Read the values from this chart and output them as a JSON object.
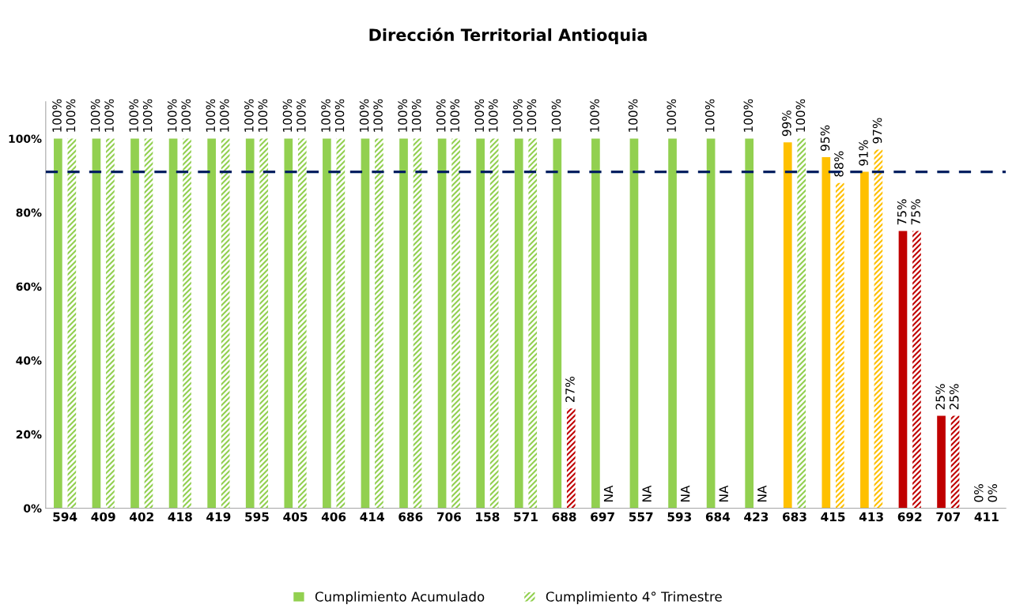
{
  "chart_data": {
    "type": "bar",
    "title": "Dirección Territorial Antioquia",
    "categories": [
      "594",
      "409",
      "402",
      "418",
      "419",
      "595",
      "405",
      "406",
      "414",
      "686",
      "706",
      "158",
      "571",
      "688",
      "697",
      "557",
      "593",
      "684",
      "423",
      "683",
      "415",
      "413",
      "692",
      "707",
      "411"
    ],
    "series": [
      {
        "name": "Cumplimiento Acumulado",
        "color": "#92d050",
        "values": [
          100,
          100,
          100,
          100,
          100,
          100,
          100,
          100,
          100,
          100,
          100,
          100,
          100,
          100,
          100,
          100,
          100,
          100,
          100,
          99,
          95,
          91,
          75,
          25,
          0
        ],
        "colors": [
          "#92d050",
          "#92d050",
          "#92d050",
          "#92d050",
          "#92d050",
          "#92d050",
          "#92d050",
          "#92d050",
          "#92d050",
          "#92d050",
          "#92d050",
          "#92d050",
          "#92d050",
          "#92d050",
          "#92d050",
          "#92d050",
          "#92d050",
          "#92d050",
          "#92d050",
          "#ffc000",
          "#ffc000",
          "#ffc000",
          "#c00000",
          "#c00000",
          "#c00000"
        ],
        "value_labels": [
          "100%",
          "100%",
          "100%",
          "100%",
          "100%",
          "100%",
          "100%",
          "100%",
          "100%",
          "100%",
          "100%",
          "100%",
          "100%",
          "100%",
          "100%",
          "100%",
          "100%",
          "100%",
          "100%",
          "99%",
          "95%",
          "91%",
          "75%",
          "25%",
          "0%"
        ]
      },
      {
        "name": "Cumplimiento 4° Trimestre",
        "color": "#92d050",
        "values": [
          100,
          100,
          100,
          100,
          100,
          100,
          100,
          100,
          100,
          100,
          100,
          100,
          100,
          27,
          null,
          null,
          null,
          null,
          null,
          100,
          88,
          97,
          75,
          25,
          0
        ],
        "colors": [
          "#92d050",
          "#92d050",
          "#92d050",
          "#92d050",
          "#92d050",
          "#92d050",
          "#92d050",
          "#92d050",
          "#92d050",
          "#92d050",
          "#92d050",
          "#92d050",
          "#92d050",
          "#c00000",
          "#92d050",
          "#92d050",
          "#92d050",
          "#92d050",
          "#92d050",
          "#92d050",
          "#ffc000",
          "#ffc000",
          "#c00000",
          "#c00000",
          "#c00000"
        ],
        "value_labels": [
          "100%",
          "100%",
          "100%",
          "100%",
          "100%",
          "100%",
          "100%",
          "100%",
          "100%",
          "100%",
          "100%",
          "100%",
          "100%",
          "27%",
          "NA",
          "NA",
          "NA",
          "NA",
          "NA",
          "100%",
          "88%",
          "97%",
          "75%",
          "25%",
          "0%"
        ]
      }
    ],
    "ylim": [
      0,
      110
    ],
    "yticks": [
      {
        "value": 0,
        "label": "0%"
      },
      {
        "value": 20,
        "label": "20%"
      },
      {
        "value": 40,
        "label": "40%"
      },
      {
        "value": 60,
        "label": "60%"
      },
      {
        "value": 80,
        "label": "80%"
      },
      {
        "value": 100,
        "label": "100%"
      }
    ],
    "ref_lines": [
      {
        "axis": "y",
        "value": 91,
        "color": "#002060",
        "line_style": "dashed"
      }
    ],
    "grid": false,
    "legend": "bottom"
  }
}
